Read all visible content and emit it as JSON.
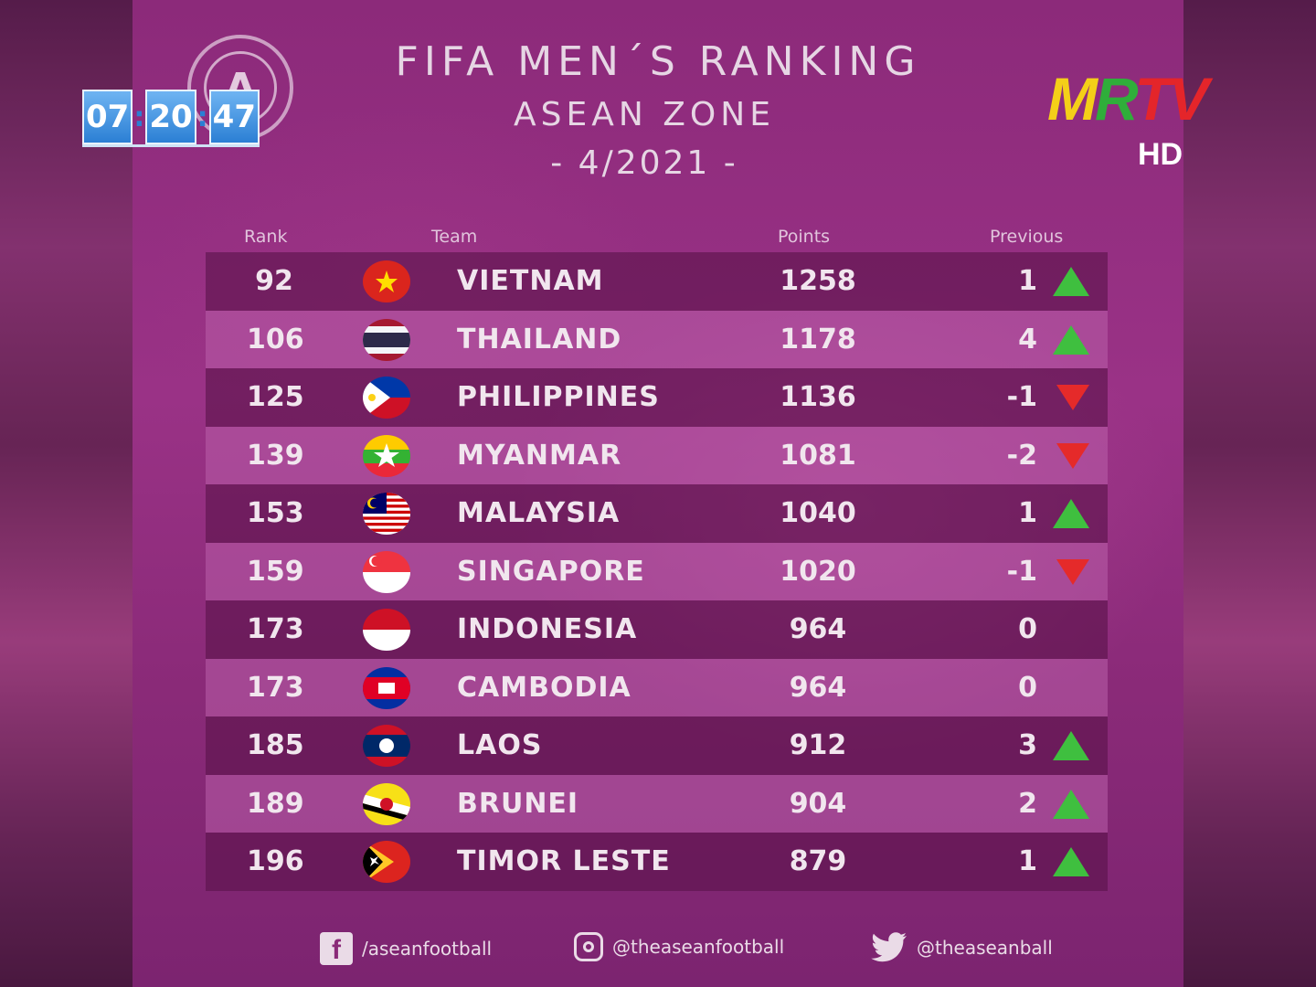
{
  "overlay": {
    "clock": [
      "07",
      "20",
      "47"
    ],
    "channel_logo": [
      "M",
      "R",
      "T",
      "V"
    ],
    "channel_hd": "HD"
  },
  "graphic": {
    "logo_letter": "A",
    "title": "FIFA MEN´S RANKING",
    "subtitle": "ASEAN ZONE",
    "date": "- 4/2021 -"
  },
  "table": {
    "headers": {
      "rank": "Rank",
      "team": "Team",
      "points": "Points",
      "previous": "Previous"
    },
    "rows": [
      {
        "rank": "92",
        "team": "VIETNAM",
        "points": "1258",
        "previous": "1",
        "trend": "up",
        "flag": "vietnam-flag-icon"
      },
      {
        "rank": "106",
        "team": "THAILAND",
        "points": "1178",
        "previous": "4",
        "trend": "up",
        "flag": "thailand-flag-icon"
      },
      {
        "rank": "125",
        "team": "PHILIPPINES",
        "points": "1136",
        "previous": "-1",
        "trend": "down",
        "flag": "philippines-flag-icon"
      },
      {
        "rank": "139",
        "team": "MYANMAR",
        "points": "1081",
        "previous": "-2",
        "trend": "down",
        "flag": "myanmar-flag-icon"
      },
      {
        "rank": "153",
        "team": "MALAYSIA",
        "points": "1040",
        "previous": "1",
        "trend": "up",
        "flag": "malaysia-flag-icon"
      },
      {
        "rank": "159",
        "team": "SINGAPORE",
        "points": "1020",
        "previous": "-1",
        "trend": "down",
        "flag": "singapore-flag-icon"
      },
      {
        "rank": "173",
        "team": "INDONESIA",
        "points": "964",
        "previous": "0",
        "trend": "none",
        "flag": "indonesia-flag-icon"
      },
      {
        "rank": "173",
        "team": "CAMBODIA",
        "points": "964",
        "previous": "0",
        "trend": "none",
        "flag": "cambodia-flag-icon"
      },
      {
        "rank": "185",
        "team": "LAOS",
        "points": "912",
        "previous": "3",
        "trend": "up",
        "flag": "laos-flag-icon"
      },
      {
        "rank": "189",
        "team": "BRUNEI",
        "points": "904",
        "previous": "2",
        "trend": "up",
        "flag": "brunei-flag-icon"
      },
      {
        "rank": "196",
        "team": "TIMOR LESTE",
        "points": "879",
        "previous": "1",
        "trend": "up",
        "flag": "timor-leste-flag-icon"
      }
    ]
  },
  "footer": {
    "facebook": "/aseanfootball",
    "instagram": "@theaseanfootball",
    "twitter": "@theaseanball"
  },
  "colors": {
    "trend_up": "#3fbf3f",
    "trend_down": "#e52a2a",
    "background": "#8c2a7a"
  }
}
